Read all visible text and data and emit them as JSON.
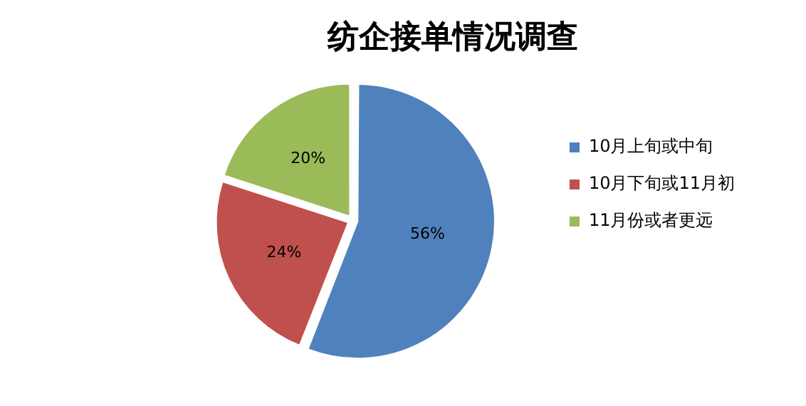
{
  "chart_data": {
    "type": "pie",
    "title": "纺企接单情况调查",
    "categories": [
      "10月上旬或中旬",
      "10月下旬或11月初",
      "11月份或者更远"
    ],
    "values": [
      56,
      24,
      20
    ],
    "colors": [
      "#4f81bd",
      "#c0504d",
      "#9bbb59"
    ],
    "value_labels": [
      "56%",
      "24%",
      "20%"
    ],
    "legend": "right"
  }
}
